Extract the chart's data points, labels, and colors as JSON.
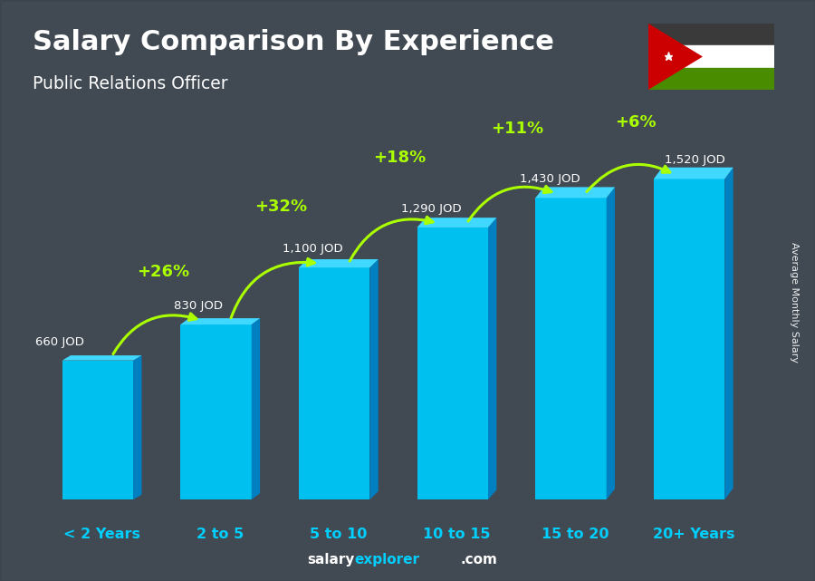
{
  "title": "Salary Comparison By Experience",
  "subtitle": "Public Relations Officer",
  "categories": [
    "< 2 Years",
    "2 to 5",
    "5 to 10",
    "10 to 15",
    "15 to 20",
    "20+ Years"
  ],
  "values": [
    660,
    830,
    1100,
    1290,
    1430,
    1520
  ],
  "labels": [
    "660 JOD",
    "830 JOD",
    "1,100 JOD",
    "1,290 JOD",
    "1,430 JOD",
    "1,520 JOD"
  ],
  "pct_changes": [
    "+26%",
    "+32%",
    "+18%",
    "+11%",
    "+6%"
  ],
  "bar_color_face": "#00c0f0",
  "bar_color_side": "#0080c0",
  "bar_color_top": "#40d8ff",
  "bg_color": "#555f6a",
  "title_color": "#ffffff",
  "subtitle_color": "#ffffff",
  "label_color": "#ffffff",
  "pct_color": "#aaff00",
  "xlabel_color": "#00cfff",
  "footer_salary": "salary",
  "footer_explorer": "explorer",
  "footer_com": ".com",
  "ylabel_text": "Average Monthly Salary",
  "ylim": [
    0,
    1900
  ],
  "bar_width": 0.6,
  "depth": 0.12
}
